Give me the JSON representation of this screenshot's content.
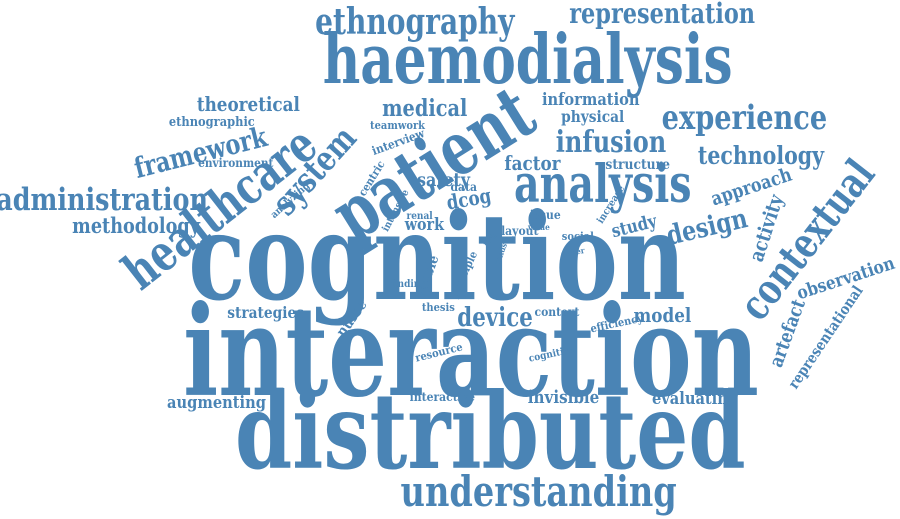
{
  "cloud": {
    "color": "#4a84b5",
    "words": [
      "cognition",
      "interaction",
      "distributed",
      "haemodialysis",
      "patient",
      "analysis",
      "healthcare",
      "understanding",
      "ethnography",
      "representation",
      "experience",
      "contextual",
      "system",
      "infusion",
      "technology",
      "administration",
      "framework",
      "medical",
      "design",
      "methodology",
      "device",
      "theoretical",
      "approach",
      "information",
      "observation",
      "activity",
      "factor",
      "representational",
      "artefact",
      "dcog",
      "safety",
      "model",
      "augmenting",
      "evaluating",
      "invisible",
      "physical",
      "study",
      "strategies",
      "structure",
      "ethnographic",
      "work",
      "nurse",
      "visible",
      "environment",
      "interactive",
      "data",
      "context",
      "efficiency",
      "interview",
      "teamwork",
      "centric",
      "issue",
      "social",
      "layout",
      "principle",
      "thesis",
      "finding",
      "resource",
      "cognitive",
      "renal",
      "intensive",
      "analyzing",
      "increase",
      "value",
      "paper",
      "hinds",
      "rich"
    ]
  }
}
